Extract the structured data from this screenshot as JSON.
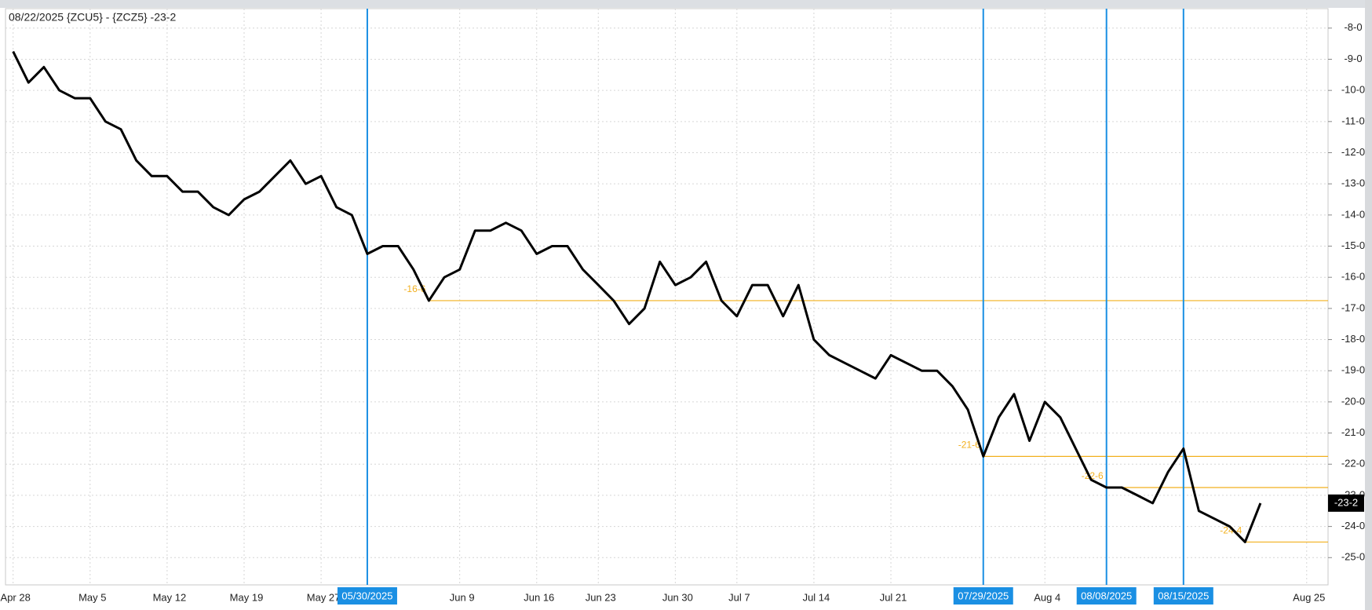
{
  "chart_data": {
    "type": "line",
    "title": "08/22/2025 {ZCU5} - {ZCZ5} -23-2",
    "categories": [
      "Apr 28",
      null,
      null,
      null,
      null,
      "May 5",
      null,
      null,
      null,
      null,
      "May 12",
      null,
      null,
      null,
      null,
      "May 19",
      null,
      null,
      null,
      null,
      "May 27",
      null,
      null,
      null,
      null,
      null,
      null,
      null,
      null,
      "Jun 9",
      null,
      null,
      null,
      null,
      "Jun 16",
      null,
      null,
      null,
      "Jun 23",
      null,
      null,
      null,
      null,
      "Jun 30",
      null,
      null,
      null,
      "Jul 7",
      null,
      null,
      null,
      null,
      "Jul 14",
      null,
      null,
      null,
      null,
      "Jul 21",
      null,
      null,
      null,
      null,
      null,
      null,
      null,
      null,
      null,
      "Aug 4",
      null,
      null,
      null,
      null,
      null,
      null,
      null,
      null,
      null,
      null,
      null,
      null,
      null,
      null,
      null,
      null,
      "Aug 25",
      null
    ],
    "values": [
      -8.75,
      -9.75,
      -9.25,
      -10.0,
      -10.25,
      -10.25,
      -11.0,
      -11.25,
      -12.25,
      -12.75,
      -12.75,
      -13.25,
      -13.25,
      -13.75,
      -14.0,
      -13.5,
      -13.25,
      -12.75,
      -12.25,
      -13.0,
      -12.75,
      -13.75,
      -14.0,
      -15.25,
      -15.0,
      -15.0,
      -15.75,
      -16.75,
      -16.0,
      -15.75,
      -14.5,
      -14.5,
      -14.25,
      -14.5,
      -15.25,
      -15.0,
      -15.0,
      -15.75,
      -16.25,
      -16.75,
      -17.5,
      -17.0,
      -15.5,
      -16.25,
      -16.0,
      -15.5,
      -16.75,
      -17.25,
      -16.25,
      -16.25,
      -17.25,
      -16.25,
      -18.0,
      -18.5,
      -18.75,
      -19.0,
      -19.25,
      -18.5,
      -18.75,
      -19.0,
      -19.0,
      -19.5,
      -20.25,
      -21.75,
      -20.5,
      -19.75,
      -21.25,
      -20.0,
      -20.5,
      -21.5,
      -22.5,
      -22.75,
      -22.75,
      -23.0,
      -23.25,
      -22.25,
      -21.5,
      -23.5,
      -23.75,
      -24.0,
      -24.5,
      -23.25,
      null,
      null,
      null,
      null
    ],
    "color": "#000000",
    "last_label": "-23-2",
    "ylim": [
      -25.875,
      -7.375
    ],
    "yticks": [
      {
        "value": -8,
        "label": "-8-0"
      },
      {
        "value": -9,
        "label": "-9-0"
      },
      {
        "value": -10,
        "label": "-10-0"
      },
      {
        "value": -11,
        "label": "-11-0"
      },
      {
        "value": -12,
        "label": "-12-0"
      },
      {
        "value": -13,
        "label": "-13-0"
      },
      {
        "value": -14,
        "label": "-14-0"
      },
      {
        "value": -15,
        "label": "-15-0"
      },
      {
        "value": -16,
        "label": "-16-0"
      },
      {
        "value": -17,
        "label": "-17-0"
      },
      {
        "value": -18,
        "label": "-18-0"
      },
      {
        "value": -19,
        "label": "-19-0"
      },
      {
        "value": -20,
        "label": "-20-0"
      },
      {
        "value": -21,
        "label": "-21-0"
      },
      {
        "value": -22,
        "label": "-22-0"
      },
      {
        "value": -23,
        "label": "-23-0"
      },
      {
        "value": -24,
        "label": "-24-0"
      },
      {
        "value": -25,
        "label": "-25-0"
      }
    ],
    "grid": true,
    "level_color": "#f2b01e",
    "levels": [
      {
        "value": -16.75,
        "label": "-16-6"
      },
      {
        "value": -21.75,
        "label": "-21-6"
      },
      {
        "value": -22.75,
        "label": "-22-6"
      },
      {
        "value": -24.5,
        "label": "-24-4"
      }
    ],
    "marker_color": "#1a8fe3",
    "markers": [
      {
        "x": 23,
        "label": "05/30/2025"
      },
      {
        "x": 63,
        "label": "07/29/2025"
      },
      {
        "x": 71,
        "label": "08/08/2025"
      },
      {
        "x": 76,
        "label": "08/15/2025"
      }
    ]
  }
}
